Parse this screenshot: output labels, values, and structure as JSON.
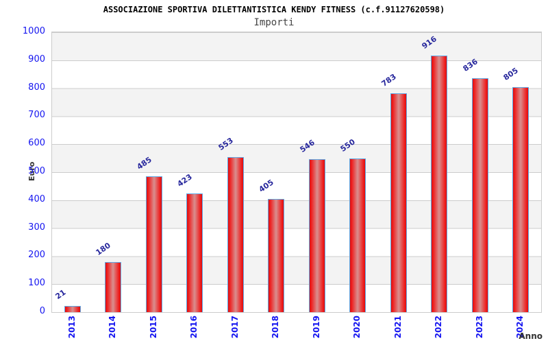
{
  "header": {
    "title": "ASSOCIAZIONE SPORTIVA DILETTANTISTICA KENDY FITNESS (c.f.91127620598)",
    "subtitle": "Importi"
  },
  "chart_data": {
    "type": "bar",
    "title": "ASSOCIAZIONE SPORTIVA DILETTANTISTICA KENDY FITNESS (c.f.91127620598)",
    "subtitle": "Importi",
    "categories": [
      "2013",
      "2014",
      "2015",
      "2016",
      "2017",
      "2018",
      "2019",
      "2020",
      "2021",
      "2022",
      "2023",
      "2024"
    ],
    "values": [
      21,
      180,
      485,
      423,
      553,
      405,
      546,
      550,
      783,
      916,
      836,
      805
    ],
    "xlabel": "Anno",
    "ylabel": "Euro",
    "ylim": [
      0,
      1000
    ],
    "ytick_step": 100,
    "yticks": [
      0,
      100,
      200,
      300,
      400,
      500,
      600,
      700,
      800,
      900,
      1000
    ],
    "grid": true,
    "legend": false,
    "colors": {
      "bar_edge_red": "#de0f0f",
      "bar_mid": "#d98f8f",
      "bar_border": "#5ea9e6",
      "tick_label": "#1414f0",
      "value_label": "#26269c",
      "band_gray": "#f3f3f3",
      "gridline": "#cccccc",
      "title": "#000000",
      "subtitle": "#444444",
      "axis_title": "#333333"
    }
  }
}
